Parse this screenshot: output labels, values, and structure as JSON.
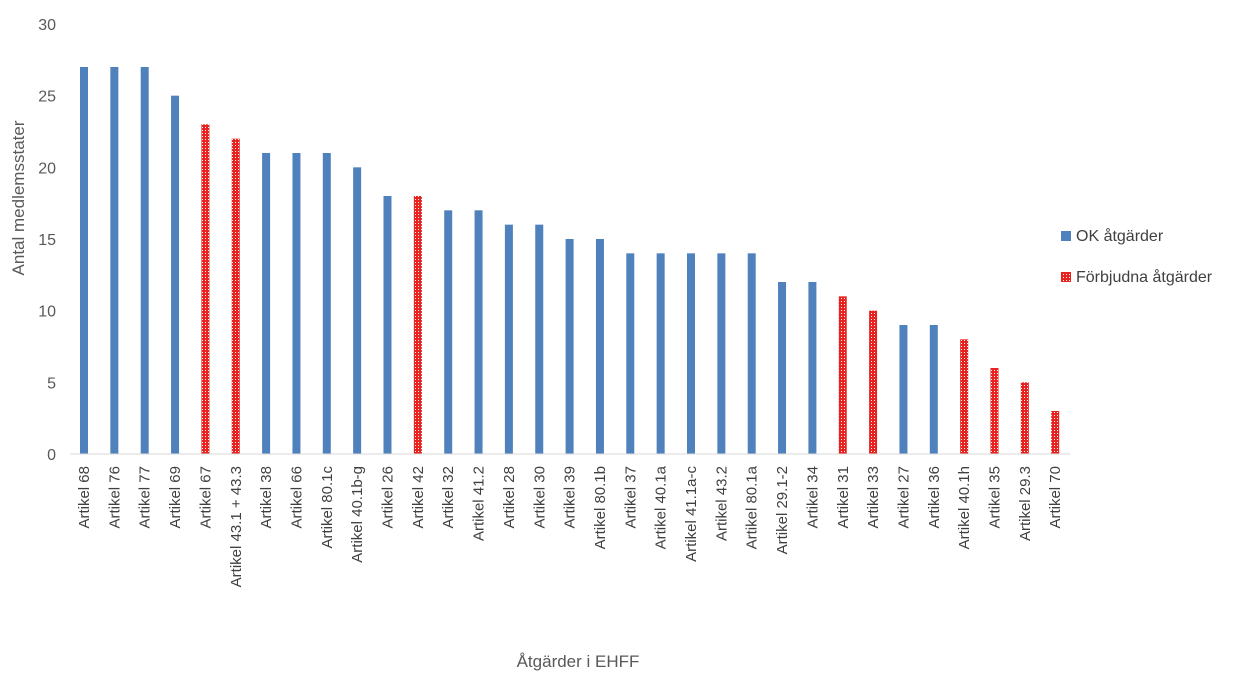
{
  "chart_data": {
    "type": "bar",
    "title": "",
    "xlabel": "Åtgärder i EHFF",
    "ylabel": "Antal medlemsstater",
    "ylim": [
      0,
      30
    ],
    "yticks": [
      0,
      5,
      10,
      15,
      20,
      25,
      30
    ],
    "grid": false,
    "legend_position": "right",
    "categories": [
      "Artikel 68",
      "Artikel 76",
      "Artikel 77",
      "Artikel 69",
      "Artikel 67",
      "Artikel 43.1 + 43.3",
      "Artikel 38",
      "Artikel 66",
      "Artikel 80.1c",
      "Artikel 40.1b-g",
      "Artikel 26",
      "Artikel 42",
      "Artikel 32",
      "Artikel 41.2",
      "Artikel 28",
      "Artikel 30",
      "Artikel 39",
      "Artikel 80.1b",
      "Artikel 37",
      "Artikel 40.1a",
      "Artikel 41.1a-c",
      "Artikel 43.2",
      "Artikel 80.1a",
      "Artikel 29.1-2",
      "Artikel 34",
      "Artikel 31",
      "Artikel 33",
      "Artikel 27",
      "Artikel 36",
      "Artikel 40.1h",
      "Artikel 35",
      "Artikel 29.3",
      "Artikel 70"
    ],
    "series": [
      {
        "name": "OK åtgärder",
        "color": "#4f81bd",
        "values": [
          27,
          27,
          27,
          25,
          null,
          null,
          21,
          21,
          21,
          20,
          18,
          null,
          17,
          17,
          16,
          16,
          15,
          15,
          14,
          14,
          14,
          14,
          14,
          12,
          12,
          null,
          null,
          9,
          9,
          null,
          null,
          null,
          null
        ]
      },
      {
        "name": "Förbjudna åtgärder",
        "color": "#e8231f",
        "values": [
          null,
          null,
          null,
          null,
          23,
          22,
          null,
          null,
          null,
          null,
          null,
          18,
          null,
          null,
          null,
          null,
          null,
          null,
          null,
          null,
          null,
          null,
          null,
          null,
          null,
          11,
          10,
          null,
          null,
          8,
          6,
          5,
          3
        ]
      }
    ]
  }
}
